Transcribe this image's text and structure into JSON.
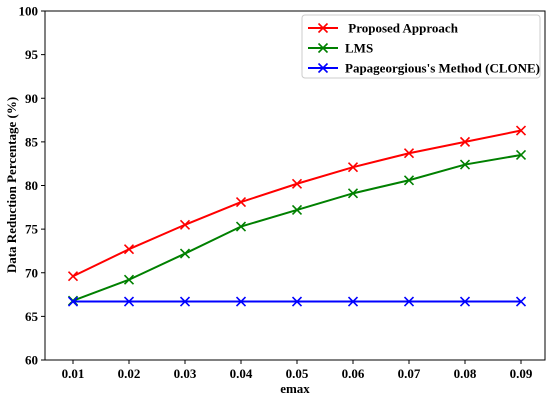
{
  "chart_data": {
    "type": "line",
    "xlabel": "emax",
    "ylabel": "Data Reduction Percentage (%)",
    "x": [
      "0.01",
      "0.02",
      "0.03",
      "0.04",
      "0.05",
      "0.06",
      "0.07",
      "0.08",
      "0.09"
    ],
    "ylim": [
      60,
      100
    ],
    "yticks": [
      "60",
      "65",
      "70",
      "75",
      "80",
      "85",
      "90",
      "95",
      "100"
    ],
    "grid": false,
    "legend": "top-right",
    "marker": "x",
    "series": [
      {
        "name": " Proposed Approach",
        "color": "#ff0000",
        "values": [
          69.6,
          72.7,
          75.5,
          78.1,
          80.2,
          82.1,
          83.7,
          85.0,
          86.3
        ]
      },
      {
        "name": "LMS",
        "color": "#008000",
        "values": [
          66.8,
          69.2,
          72.2,
          75.3,
          77.2,
          79.1,
          80.6,
          82.4,
          83.5
        ]
      },
      {
        "name": "Papageorgious's Method (CLONE)",
        "color": "#0000ff",
        "values": [
          66.7,
          66.7,
          66.7,
          66.7,
          66.7,
          66.7,
          66.7,
          66.7,
          66.7
        ]
      }
    ]
  }
}
